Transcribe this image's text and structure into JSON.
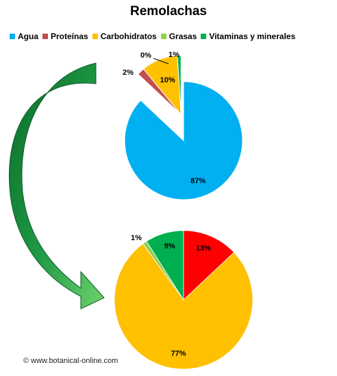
{
  "chart_data": [
    {
      "type": "pie",
      "title": "Remolachas",
      "legend": {
        "placement": "top"
      },
      "slices": [
        {
          "name": "Agua",
          "value": 87,
          "label": "87%",
          "color": "#00b0f0",
          "exploded": false
        },
        {
          "name": "Proteínas",
          "value": 2,
          "label": "2%",
          "color": "#c0504d",
          "exploded": true
        },
        {
          "name": "Carbohidratos",
          "value": 10,
          "label": "10%",
          "color": "#ffc000",
          "exploded": true
        },
        {
          "name": "Grasas",
          "value": 0,
          "label": "0%",
          "color": "#92d050",
          "exploded": true
        },
        {
          "name": "Vitaminas y minerales",
          "value": 1,
          "label": "1%",
          "color": "#00b050",
          "exploded": true
        }
      ]
    },
    {
      "type": "pie",
      "slices": [
        {
          "value": 13,
          "label": "13%",
          "color": "#ff0000"
        },
        {
          "value": 77,
          "label": "77%",
          "color": "#ffc000"
        },
        {
          "value": 1,
          "label": "1%",
          "color": "#92d050"
        },
        {
          "value": 9,
          "label": "9%",
          "color": "#00b050"
        }
      ]
    }
  ],
  "watermark": "© www.botanical-online.com"
}
